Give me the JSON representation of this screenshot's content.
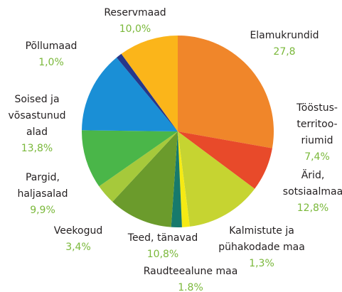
{
  "chart_data": {
    "type": "pie",
    "categories": [
      [
        "Elamukrundid"
      ],
      [
        "Tööstus-",
        "territoo-",
        "riumid"
      ],
      [
        "Ärid,",
        "sotsiaalmaa"
      ],
      [
        "Kalmistute ja",
        "pühakodade maa"
      ],
      [
        "Raudteealune maa"
      ],
      [
        "Teed, tänavad"
      ],
      [
        "Veekogud"
      ],
      [
        "Pargid,",
        "haljasalad"
      ],
      [
        "Soised ja",
        "võsastunud",
        "alad"
      ],
      [
        "Põllumaad"
      ],
      [
        "Reservmaad"
      ]
    ],
    "values": [
      27.8,
      7.4,
      12.8,
      1.3,
      1.8,
      10.8,
      3.4,
      9.9,
      13.8,
      1.0,
      10.0
    ],
    "value_labels": [
      "27,8",
      "7,4%",
      "12,8%",
      "1,3%",
      "1.8%",
      "10,8%",
      "3,4%",
      "9,9%",
      "13,8%",
      "1,0%",
      "10,0%"
    ],
    "colors": [
      "#f0862a",
      "#e84a2a",
      "#c6d431",
      "#f5ea14",
      "#177a6c",
      "#6b9b2c",
      "#a6c93b",
      "#4ab649",
      "#1a8fd6",
      "#26378a",
      "#fbb51a"
    ]
  }
}
